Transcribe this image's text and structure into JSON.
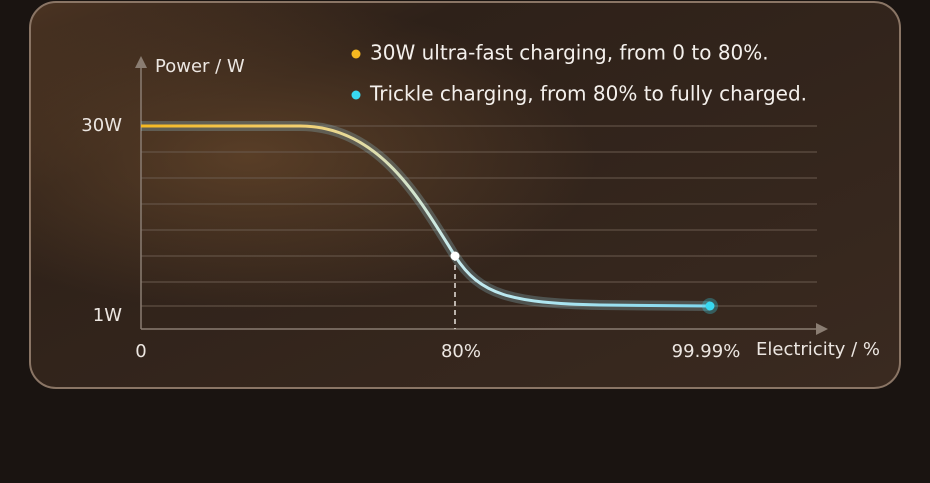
{
  "legend": [
    {
      "text": "30W ultra-fast charging, from 0 to 80%.",
      "color": "#f5b820"
    },
    {
      "text": "Trickle charging, from 80% to fully charged.",
      "color": "#38d8f0"
    }
  ],
  "axes": {
    "y_label": "Power / W",
    "x_label": "Electricity / %",
    "y_ticks": [
      "30W",
      "1W"
    ],
    "x_ticks": [
      "0",
      "80%",
      "99.99%"
    ]
  }
}
